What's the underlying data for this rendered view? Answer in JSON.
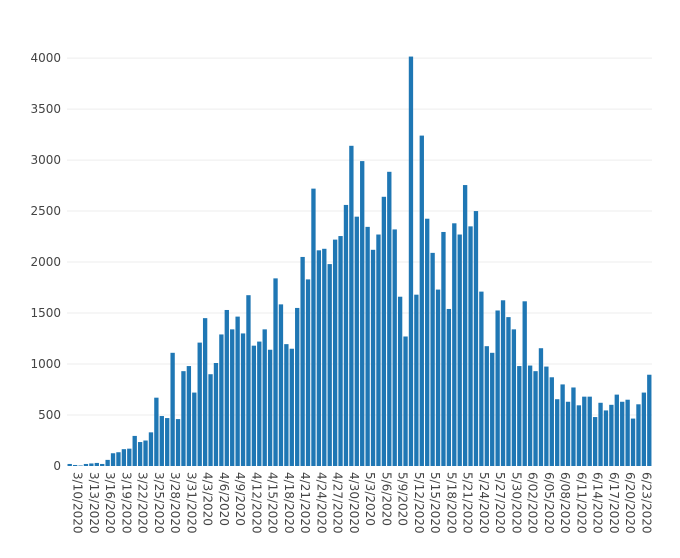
{
  "chart_data": {
    "type": "bar",
    "title": "",
    "xlabel": "",
    "ylabel": "",
    "bar_color": "#1f77b4",
    "grid": true,
    "ylim": [
      0,
      4050
    ],
    "yticks": [
      0,
      500,
      1000,
      1500,
      2000,
      2500,
      3000,
      3500,
      4000
    ],
    "xtick_labels": [
      "3/10/2020",
      "3/13/2020",
      "3/16/2020",
      "3/19/2020",
      "3/22/2020",
      "3/25/2020",
      "3/28/2020",
      "3/31/2020",
      "4/3/2020",
      "4/6/2020",
      "4/9/2020",
      "4/12/2020",
      "4/15/2020",
      "4/18/2020",
      "4/21/2020",
      "4/24/2020",
      "4/27/2020",
      "4/30/2020",
      "5/3/2020",
      "5/6/2020",
      "5/9/2020",
      "5/12/2020",
      "5/15/2020",
      "5/18/2020",
      "5/21/2020",
      "5/24/2020",
      "5/27/2020",
      "5/30/2020",
      "6/02/2020",
      "6/05/2020",
      "6/08/2020",
      "6/11/2020",
      "6/14/2020",
      "6/17/2020",
      "6/20/2020",
      "6/23/2020"
    ],
    "start_date": "2020-03-10",
    "values": [
      20,
      10,
      5,
      20,
      25,
      30,
      20,
      60,
      125,
      135,
      165,
      170,
      295,
      235,
      250,
      330,
      670,
      490,
      470,
      1110,
      460,
      930,
      980,
      720,
      1210,
      1450,
      900,
      1010,
      1290,
      1530,
      1340,
      1465,
      1300,
      1675,
      1180,
      1220,
      1340,
      1140,
      1840,
      1585,
      1195,
      1150,
      1550,
      2050,
      1830,
      2720,
      2115,
      2130,
      1980,
      2220,
      2255,
      2560,
      3140,
      2445,
      2990,
      2345,
      2120,
      2270,
      2640,
      2885,
      2320,
      1660,
      1270,
      4015,
      1680,
      3240,
      2425,
      2090,
      1730,
      2295,
      1540,
      2380,
      2270,
      2755,
      2350,
      2500,
      1710,
      1175,
      1110,
      1525,
      1625,
      1460,
      1340,
      980,
      1615,
      985,
      930,
      1155,
      975,
      870,
      655,
      800,
      630,
      770,
      595,
      680,
      680,
      480,
      620,
      545,
      600,
      700,
      630,
      650,
      465,
      605,
      720,
      895
    ]
  }
}
